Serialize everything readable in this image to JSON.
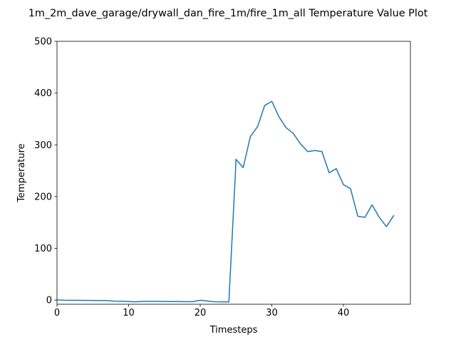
{
  "chart_data": {
    "type": "line",
    "title": "1m_2m_dave_garage/drywall_dan_fire_1m/fire_1m_all Temperature Value Plot",
    "xlabel": "Timesteps",
    "ylabel": "Temperature",
    "xlim": [
      0,
      49.35
    ],
    "ylim": [
      -8,
      500
    ],
    "xticks": [
      0,
      10,
      20,
      30,
      40
    ],
    "yticks": [
      0,
      100,
      200,
      300,
      400,
      500
    ],
    "grid": false,
    "series": [
      {
        "color": "#1f77b4",
        "x": [
          0,
          1,
          2,
          3,
          4,
          5,
          6,
          7,
          8,
          9,
          10,
          11,
          12,
          13,
          14,
          15,
          16,
          17,
          18,
          19,
          20,
          21,
          22,
          23,
          24,
          24.9,
          25,
          26,
          27,
          28,
          29,
          30,
          31,
          32,
          33,
          34,
          35,
          36,
          37,
          38,
          39,
          40,
          41,
          42,
          43,
          44,
          45,
          46,
          47
        ],
        "y": [
          0.5,
          -0.2,
          -0.4,
          -0.5,
          -0.6,
          -0.7,
          -0.8,
          -1.0,
          -2.0,
          -2.2,
          -2.8,
          -3.1,
          -2.6,
          -2.4,
          -2.5,
          -2.6,
          -2.8,
          -2.9,
          -3.0,
          -3.0,
          -0.3,
          -1.8,
          -3.2,
          -3.4,
          -3.6,
          242,
          272,
          256,
          316,
          335,
          376,
          384,
          354,
          333,
          322,
          302,
          287,
          289,
          287,
          246,
          254,
          223,
          215,
          162,
          160,
          184,
          160,
          142,
          163
        ]
      }
    ]
  }
}
